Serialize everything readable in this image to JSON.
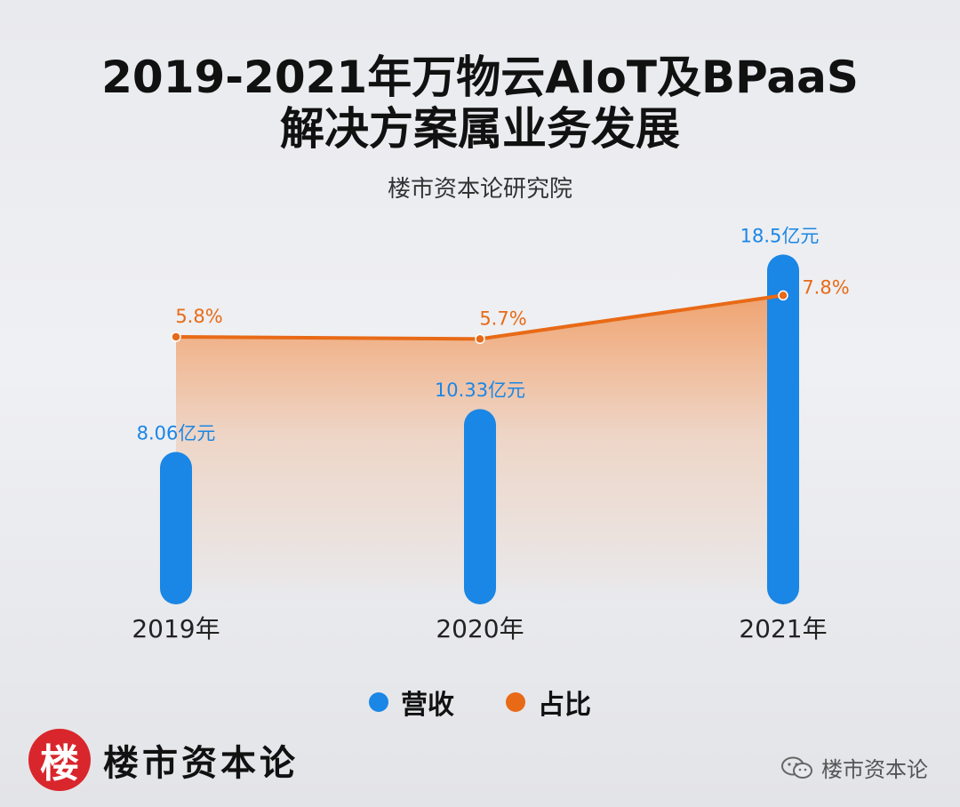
{
  "title_line_1": "2019-2021年万物云AIoT及BPaaS",
  "title_line_2": "解决方案属业务发展",
  "subtitle": "楼市资本论研究院",
  "colors": {
    "revenue": "#1a86e6",
    "share": "#e86a17",
    "area": "#f08a45"
  },
  "chart_data": {
    "type": "bar",
    "categories": [
      "2019年",
      "2020年",
      "2021年"
    ],
    "series": [
      {
        "name": "营收",
        "type": "bar",
        "values": [
          8.06,
          10.33,
          18.5
        ],
        "labels": [
          "8.06亿元",
          "10.33亿元",
          "18.5亿元"
        ]
      },
      {
        "name": "占比",
        "type": "line",
        "values": [
          5.8,
          5.7,
          7.8
        ],
        "labels": [
          "5.8%",
          "5.7%",
          "7.8%"
        ]
      }
    ],
    "title": "2019-2021年万物云AIoT及BPaaS解决方案属业务发展",
    "subtitle": "楼市资本论研究院",
    "grid": false,
    "legend": "bottom-center"
  },
  "legend": [
    {
      "label": "营收",
      "color": "#1a86e6"
    },
    {
      "label": "占比",
      "color": "#e86a17"
    }
  ],
  "brand": {
    "logo_char": "楼",
    "name": "楼市资本论"
  },
  "watermark": {
    "text": "楼市资本论",
    "icon": "wechat-icon"
  }
}
